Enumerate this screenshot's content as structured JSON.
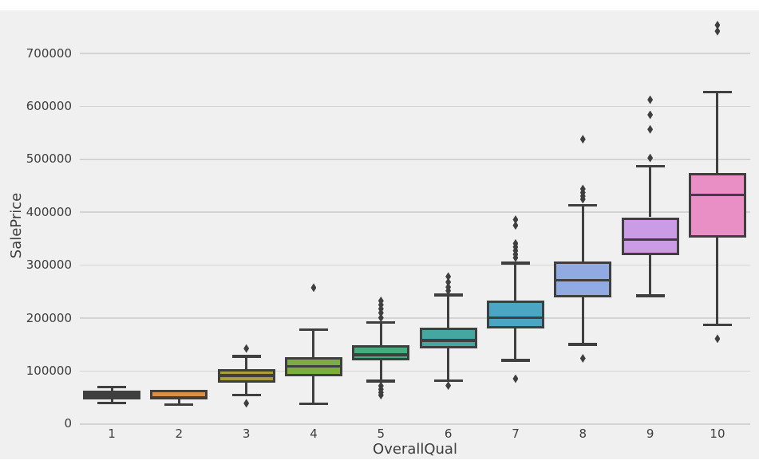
{
  "figure": {
    "background_color": "#f0f0f0",
    "grid_color": "#d4d4d4",
    "edge_color": "#3f3f3f",
    "text_color": "#3e3e3e",
    "x_axis_label": "OverallQual",
    "y_axis_label": "SalePrice"
  },
  "chart_data": {
    "type": "boxplot",
    "title": "",
    "xlabel": "OverallQual",
    "ylabel": "SalePrice",
    "grid": "horizontal-only",
    "legend": "none",
    "ylim": [
      0,
      780000
    ],
    "y_ticks": [
      {
        "value": 0,
        "label": "0"
      },
      {
        "value": 100000,
        "label": "100000"
      },
      {
        "value": 200000,
        "label": "200000"
      },
      {
        "value": 300000,
        "label": "300000"
      },
      {
        "value": 400000,
        "label": "400000"
      },
      {
        "value": 500000,
        "label": "500000"
      },
      {
        "value": 600000,
        "label": "600000"
      },
      {
        "value": 700000,
        "label": "700000"
      }
    ],
    "categories": [
      "1",
      "2",
      "3",
      "4",
      "5",
      "6",
      "7",
      "8",
      "9",
      "10"
    ],
    "series": [
      {
        "label": "1",
        "fill": "#3f3f3f",
        "whisker_low": 39500,
        "q1": 47000,
        "median": 53000,
        "q3": 63500,
        "whisker_high": 70000,
        "outliers_low": [],
        "outliers_high": []
      },
      {
        "label": "2",
        "fill": "#d89045",
        "whisker_low": 36500,
        "q1": 47000,
        "median": 49500,
        "q3": 64000,
        "whisker_high": 64000,
        "outliers_low": [],
        "outliers_high": []
      },
      {
        "label": "3",
        "fill": "#ab9d3c",
        "whisker_low": 55000,
        "q1": 78500,
        "median": 91500,
        "q3": 103000,
        "whisker_high": 128000,
        "outliers_low": [
          39000
        ],
        "outliers_high": [
          142500
        ]
      },
      {
        "label": "4",
        "fill": "#7dad3e",
        "whisker_low": 38000,
        "q1": 90500,
        "median": 109000,
        "q3": 126500,
        "whisker_high": 178000,
        "outliers_low": [],
        "outliers_high": [
          257500
        ]
      },
      {
        "label": "5",
        "fill": "#47ad80",
        "whisker_low": 81000,
        "q1": 120000,
        "median": 131000,
        "q3": 148500,
        "whisker_high": 192000,
        "outliers_low": [
          54500,
          59500,
          65500,
          72000
        ],
        "outliers_high": [
          200500,
          210000,
          217500,
          225000,
          232500
        ]
      },
      {
        "label": "6",
        "fill": "#45a8a0",
        "whisker_low": 82000,
        "q1": 143000,
        "median": 158000,
        "q3": 181500,
        "whisker_high": 244000,
        "outliers_low": [
          72500
        ],
        "outliers_high": [
          251500,
          258500,
          268000,
          278500
        ]
      },
      {
        "label": "7",
        "fill": "#4ba6c3",
        "whisker_low": 120500,
        "q1": 181000,
        "median": 200500,
        "q3": 232500,
        "whisker_high": 304000,
        "outliers_low": [
          85500
        ],
        "outliers_high": [
          314000,
          320500,
          327500,
          334500,
          341000,
          375000,
          386000
        ]
      },
      {
        "label": "8",
        "fill": "#92aae2",
        "whisker_low": 150000,
        "q1": 238500,
        "median": 271500,
        "q3": 306500,
        "whisker_high": 413000,
        "outliers_low": [
          124000
        ],
        "outliers_high": [
          424500,
          430500,
          437000,
          444000,
          538000
        ]
      },
      {
        "label": "9",
        "fill": "#c99ce5",
        "whisker_low": 242500,
        "q1": 319500,
        "median": 348000,
        "q3": 390500,
        "whisker_high": 487000,
        "outliers_low": [],
        "outliers_high": [
          502500,
          556500,
          584000,
          612500
        ]
      },
      {
        "label": "10",
        "fill": "#ea8fc6",
        "whisker_low": 187000,
        "q1": 351500,
        "median": 433000,
        "q3": 473500,
        "whisker_high": 627000,
        "outliers_low": [
          161000
        ],
        "outliers_high": [
          742000,
          753500
        ]
      }
    ]
  }
}
